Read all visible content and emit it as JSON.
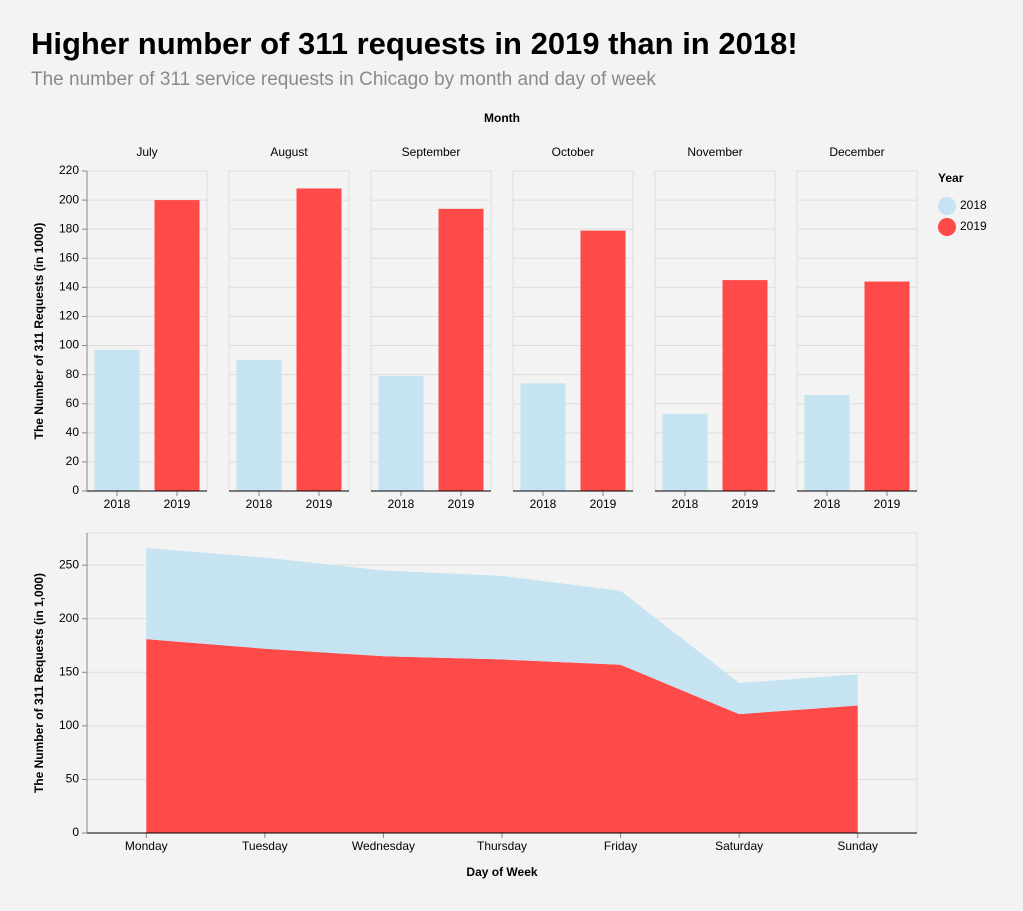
{
  "title": "Higher number of 311 requests in 2019 than in 2018!",
  "subtitle": "The number of 311 service requests in Chicago by month and day of week",
  "chart_data": [
    {
      "type": "bar",
      "facet_label": "Month",
      "facets": [
        "July",
        "August",
        "September",
        "October",
        "November",
        "December"
      ],
      "ylabel": "The Number of 311 Requests (in 1000)",
      "legend_title": "Year",
      "series": [
        {
          "name": "2018",
          "color": "#c6e3f2",
          "values": [
            97,
            90,
            79,
            74,
            53,
            66
          ]
        },
        {
          "name": "2019",
          "color": "#ff4a4a",
          "values": [
            200,
            208,
            194,
            179,
            145,
            144
          ]
        }
      ],
      "ylim": [
        0,
        220
      ],
      "yticks": [
        0,
        20,
        40,
        60,
        80,
        100,
        120,
        140,
        160,
        180,
        200,
        220
      ],
      "grid": true
    },
    {
      "type": "area",
      "stacked": true,
      "categories": [
        "Monday",
        "Tuesday",
        "Wednesday",
        "Thursday",
        "Friday",
        "Saturday",
        "Sunday"
      ],
      "xlabel": "Day of Week",
      "ylabel": "The Number of 311 Requests (in 1,000)",
      "series": [
        {
          "name": "2018",
          "color": "#c6e3f2",
          "values": [
            85,
            85,
            80,
            78,
            69,
            29,
            29
          ]
        },
        {
          "name": "2019",
          "color": "#ff4a4a",
          "values": [
            181,
            172,
            165,
            162,
            157,
            111,
            119
          ]
        }
      ],
      "ylim": [
        0,
        280
      ],
      "yticks": [
        0,
        50,
        100,
        150,
        200,
        250
      ],
      "grid": true
    }
  ]
}
